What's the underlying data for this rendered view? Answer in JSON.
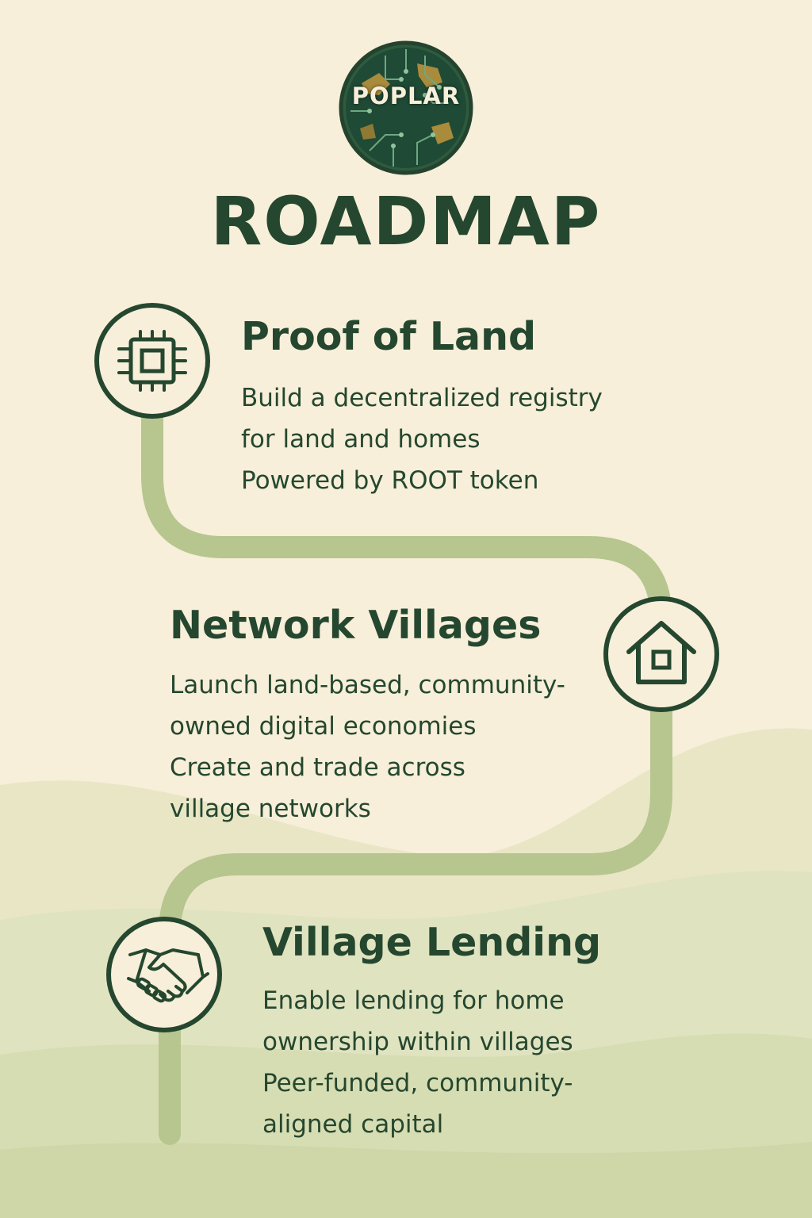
{
  "logo": {
    "text": "POPLAR",
    "icon": "circuit-globe-logo"
  },
  "title": "ROADMAP",
  "colors": {
    "background": "#f7efd9",
    "text": "#25472f",
    "path": "#b7c58f",
    "hills": "#dde3bd"
  },
  "steps": [
    {
      "icon": "chip-icon",
      "title": "Proof of Land",
      "lines": [
        "Build a decentralized registry",
        "for land and homes",
        "Powered by ROOT token"
      ]
    },
    {
      "icon": "house-icon",
      "title": "Network Villages",
      "lines": [
        "Launch land-based, community-",
        "owned digital economies",
        "Create and trade across",
        "village networks"
      ]
    },
    {
      "icon": "handshake-icon",
      "title": "Village Lending",
      "lines": [
        "Enable lending for home",
        "ownership within villages",
        "Peer-funded, community-",
        "aligned capital"
      ]
    }
  ]
}
